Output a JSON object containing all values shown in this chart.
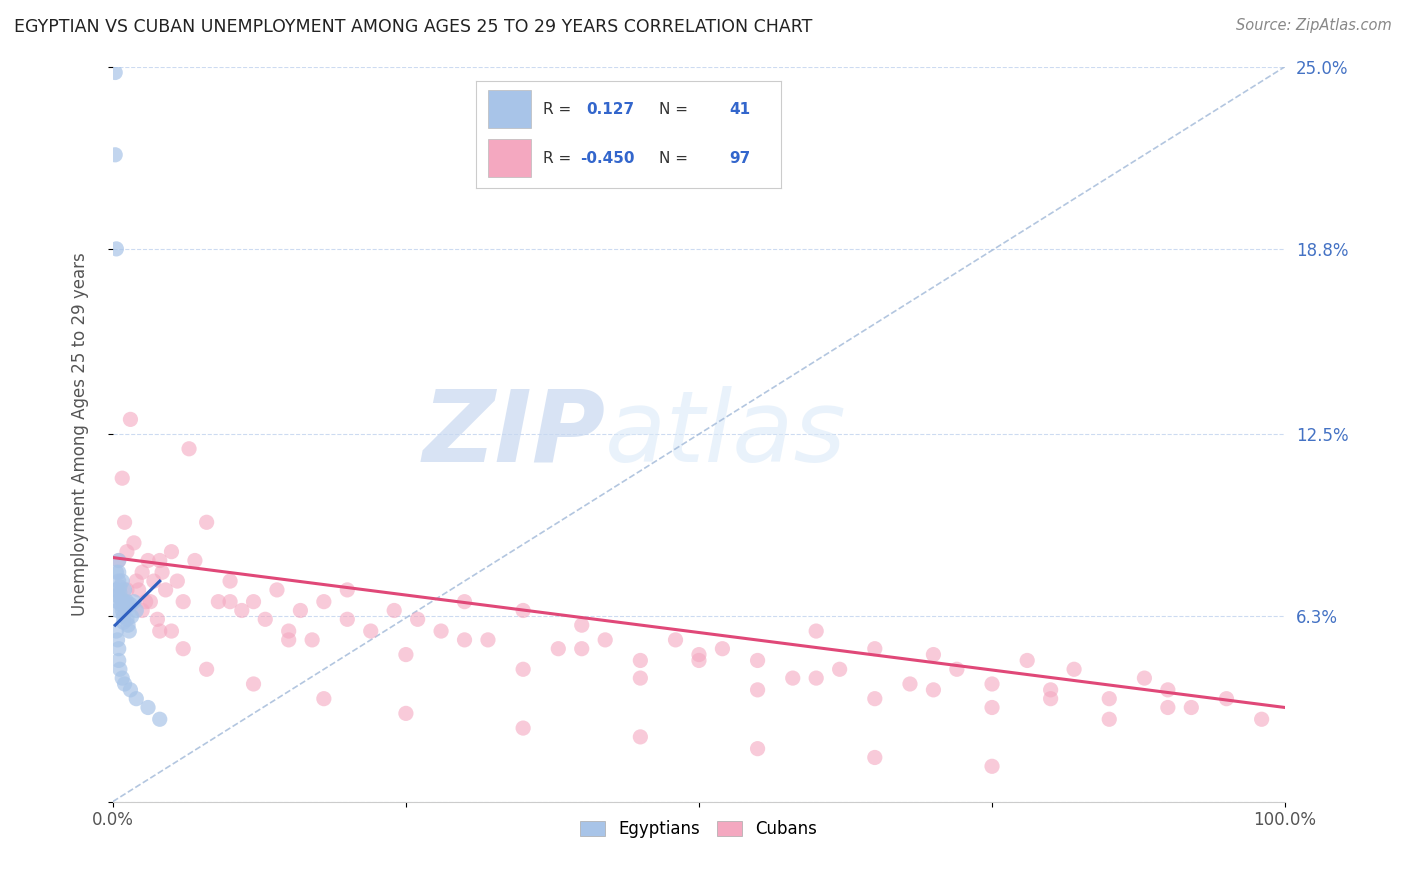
{
  "title": "EGYPTIAN VS CUBAN UNEMPLOYMENT AMONG AGES 25 TO 29 YEARS CORRELATION CHART",
  "source": "Source: ZipAtlas.com",
  "ylabel": "Unemployment Among Ages 25 to 29 years",
  "xlim": [
    0.0,
    1.0
  ],
  "ylim": [
    0.0,
    0.25
  ],
  "egypt_color": "#a8c4e8",
  "cuba_color": "#f4a8c0",
  "egypt_line_color": "#3060c0",
  "cuba_line_color": "#e04878",
  "diagonal_color": "#a0b8d8",
  "grid_color": "#c8d8f0",
  "right_tick_color": "#4472c4",
  "legend_r_egypt": "0.127",
  "legend_n_egypt": "41",
  "legend_r_cuba": "-0.450",
  "legend_n_cuba": "97",
  "watermark_zip": "ZIP",
  "watermark_atlas": "atlas",
  "egypt_x": [
    0.002,
    0.002,
    0.003,
    0.003,
    0.003,
    0.004,
    0.004,
    0.004,
    0.005,
    0.005,
    0.005,
    0.006,
    0.006,
    0.007,
    0.007,
    0.008,
    0.008,
    0.009,
    0.009,
    0.01,
    0.01,
    0.011,
    0.012,
    0.012,
    0.013,
    0.014,
    0.015,
    0.016,
    0.018,
    0.02,
    0.003,
    0.004,
    0.005,
    0.005,
    0.006,
    0.008,
    0.01,
    0.015,
    0.02,
    0.03,
    0.04
  ],
  "egypt_y": [
    0.248,
    0.22,
    0.188,
    0.078,
    0.072,
    0.07,
    0.068,
    0.065,
    0.082,
    0.078,
    0.075,
    0.073,
    0.071,
    0.069,
    0.067,
    0.075,
    0.065,
    0.063,
    0.061,
    0.072,
    0.068,
    0.066,
    0.068,
    0.062,
    0.06,
    0.058,
    0.067,
    0.063,
    0.068,
    0.065,
    0.058,
    0.055,
    0.052,
    0.048,
    0.045,
    0.042,
    0.04,
    0.038,
    0.035,
    0.032,
    0.028
  ],
  "cuba_x": [
    0.005,
    0.008,
    0.01,
    0.012,
    0.015,
    0.018,
    0.02,
    0.022,
    0.025,
    0.028,
    0.03,
    0.032,
    0.035,
    0.038,
    0.04,
    0.042,
    0.045,
    0.05,
    0.055,
    0.06,
    0.065,
    0.07,
    0.08,
    0.09,
    0.1,
    0.11,
    0.12,
    0.13,
    0.14,
    0.15,
    0.16,
    0.17,
    0.18,
    0.2,
    0.22,
    0.24,
    0.26,
    0.28,
    0.3,
    0.32,
    0.35,
    0.38,
    0.4,
    0.42,
    0.45,
    0.48,
    0.5,
    0.52,
    0.55,
    0.58,
    0.6,
    0.62,
    0.65,
    0.68,
    0.7,
    0.72,
    0.75,
    0.78,
    0.8,
    0.82,
    0.85,
    0.88,
    0.9,
    0.92,
    0.95,
    0.98,
    0.05,
    0.1,
    0.15,
    0.2,
    0.25,
    0.3,
    0.35,
    0.4,
    0.45,
    0.5,
    0.55,
    0.6,
    0.65,
    0.7,
    0.75,
    0.8,
    0.85,
    0.9,
    0.012,
    0.025,
    0.04,
    0.06,
    0.08,
    0.12,
    0.18,
    0.25,
    0.35,
    0.45,
    0.55,
    0.65,
    0.75
  ],
  "cuba_y": [
    0.082,
    0.11,
    0.095,
    0.085,
    0.13,
    0.088,
    0.075,
    0.072,
    0.078,
    0.068,
    0.082,
    0.068,
    0.075,
    0.062,
    0.082,
    0.078,
    0.072,
    0.085,
    0.075,
    0.068,
    0.12,
    0.082,
    0.095,
    0.068,
    0.075,
    0.065,
    0.068,
    0.062,
    0.072,
    0.058,
    0.065,
    0.055,
    0.068,
    0.072,
    0.058,
    0.065,
    0.062,
    0.058,
    0.068,
    0.055,
    0.065,
    0.052,
    0.06,
    0.055,
    0.048,
    0.055,
    0.05,
    0.052,
    0.048,
    0.042,
    0.058,
    0.045,
    0.052,
    0.04,
    0.05,
    0.045,
    0.04,
    0.048,
    0.038,
    0.045,
    0.035,
    0.042,
    0.038,
    0.032,
    0.035,
    0.028,
    0.058,
    0.068,
    0.055,
    0.062,
    0.05,
    0.055,
    0.045,
    0.052,
    0.042,
    0.048,
    0.038,
    0.042,
    0.035,
    0.038,
    0.032,
    0.035,
    0.028,
    0.032,
    0.072,
    0.065,
    0.058,
    0.052,
    0.045,
    0.04,
    0.035,
    0.03,
    0.025,
    0.022,
    0.018,
    0.015,
    0.012
  ],
  "cuba_trend_x": [
    0.0,
    1.0
  ],
  "cuba_trend_y": [
    0.083,
    0.032
  ],
  "egypt_trend_x": [
    0.002,
    0.04
  ],
  "egypt_trend_y": [
    0.06,
    0.075
  ]
}
